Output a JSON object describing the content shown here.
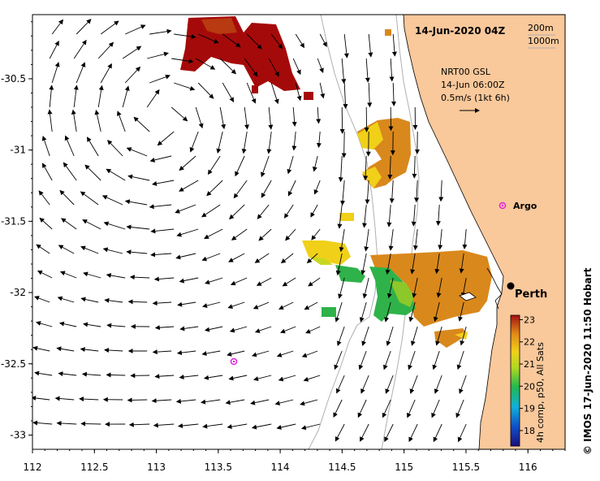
{
  "title": "14-Jun-2020 04Z",
  "depth_legend": [
    "200m",
    "1000m"
  ],
  "current_info": {
    "line1": "NRT00 GSL",
    "line2": "14-Jun 06:00Z",
    "line3": "0.5m/s (1kt 6h)"
  },
  "places": [
    {
      "name": "Perth",
      "lon": 115.86,
      "lat": -31.95,
      "marker": "filled-circle"
    },
    {
      "name": "Argo",
      "lon": 115.78,
      "lat": -31.42,
      "marker": "magenta-circle"
    },
    {
      "name": "",
      "lon": 113.63,
      "lat": -32.47,
      "marker": "magenta-circle"
    }
  ],
  "colorbar": {
    "label": "4h comp, p50, All Sats",
    "ticks": [
      18,
      19,
      20,
      21,
      22,
      23
    ],
    "min": 17.3,
    "max": 23.2
  },
  "credit": "© IMOS 17-Jun-2020 11:50 Hobart",
  "axes": {
    "x_ticks": [
      "112",
      "112.5",
      "113",
      "113.5",
      "114",
      "114.5",
      "115",
      "115.5",
      "116"
    ],
    "x_values": [
      112,
      112.5,
      113,
      113.5,
      114,
      114.5,
      115,
      115.5,
      116
    ],
    "y_ticks": [
      "-30.5",
      "-31",
      "-31.5",
      "-32",
      "-32.5",
      "-33"
    ],
    "y_values": [
      -30.5,
      -31,
      -31.5,
      -32,
      -32.5,
      -33
    ],
    "lon_range": [
      112,
      116.3
    ],
    "lat_range": [
      -30.05,
      -33.1
    ]
  },
  "colors": {
    "land": "#f9c89b",
    "sst_hot": "#a50a0a",
    "sst_orange": "#d9881c",
    "sst_yellow": "#f0d018",
    "sst_green": "#2fb24a",
    "bathymetry": "#b0b0b0",
    "argo_marker": "#e020e0"
  }
}
